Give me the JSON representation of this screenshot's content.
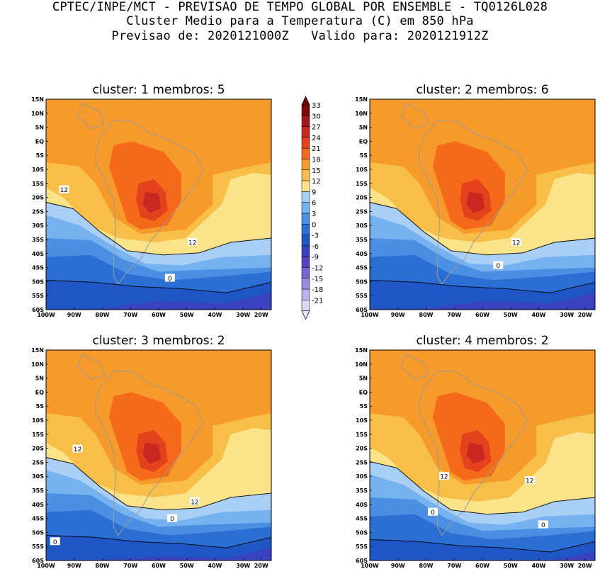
{
  "header": {
    "line1": "CPTEC/INPE/MCT - PREVISAO DE TEMPO GLOBAL POR ENSEMBLE - TQ0126L028",
    "line2": "Cluster Medio para a Temperatura (C) em 850 hPa",
    "line3": "Previsao de: 2020121000Z   Valido para: 2020121912Z"
  },
  "axes": {
    "lat_labels": [
      "15N",
      "10N",
      "5N",
      "EQ",
      "5S",
      "10S",
      "15S",
      "20S",
      "25S",
      "30S",
      "35S",
      "40S",
      "45S",
      "50S",
      "55S",
      "60S"
    ],
    "lon_labels": [
      "100W",
      "90W",
      "80W",
      "70W",
      "60W",
      "50W",
      "40W",
      "30W",
      "20W"
    ]
  },
  "panels": [
    {
      "title": "cluster: 1   membros: 5",
      "contour_labels": [
        "12",
        "12",
        "0"
      ]
    },
    {
      "title": "cluster: 2   membros: 6",
      "contour_labels": [
        "12",
        "0"
      ]
    },
    {
      "title": "cluster: 3   membros: 2",
      "contour_labels": [
        "12",
        "12",
        "0",
        "0"
      ]
    },
    {
      "title": "cluster: 4   membros: 2",
      "contour_labels": [
        "12",
        "12",
        "0",
        "0"
      ]
    }
  ],
  "colorbar": {
    "labels": [
      "33",
      "30",
      "27",
      "24",
      "21",
      "18",
      "15",
      "12",
      "9",
      "6",
      "3",
      "0",
      "-3",
      "-6",
      "-9",
      "-12",
      "-15",
      "-18",
      "-21"
    ],
    "colors": [
      "#7a0a0a",
      "#a3141b",
      "#c8281f",
      "#e4421c",
      "#f46a1a",
      "#f59a2b",
      "#f8bf48",
      "#fbe38a",
      "#a9cff7",
      "#77b2f0",
      "#4b8fe2",
      "#2c6fd4",
      "#1f55c4",
      "#3a42bf",
      "#5a3fc2",
      "#7a63d3",
      "#9b89e0",
      "#bdb2ec",
      "#dcd5f5"
    ],
    "top_color": "#6e0808",
    "bottom_color": "#e8e3f8"
  },
  "map_colors": {
    "t18_21": "#f59a2b",
    "t15_18": "#f8bf48",
    "t12_15": "#fbe38a",
    "t9_12": "#a9cff7",
    "t6_9": "#77b2f0",
    "t3_6": "#4b8fe2",
    "t0_3": "#2c6fd4",
    "tm3_0": "#1f55c4",
    "tm6_m3": "#3a42bf",
    "t21_24": "#f46a1a",
    "t24_27": "#e4421c",
    "land": "#9a9a9a"
  }
}
